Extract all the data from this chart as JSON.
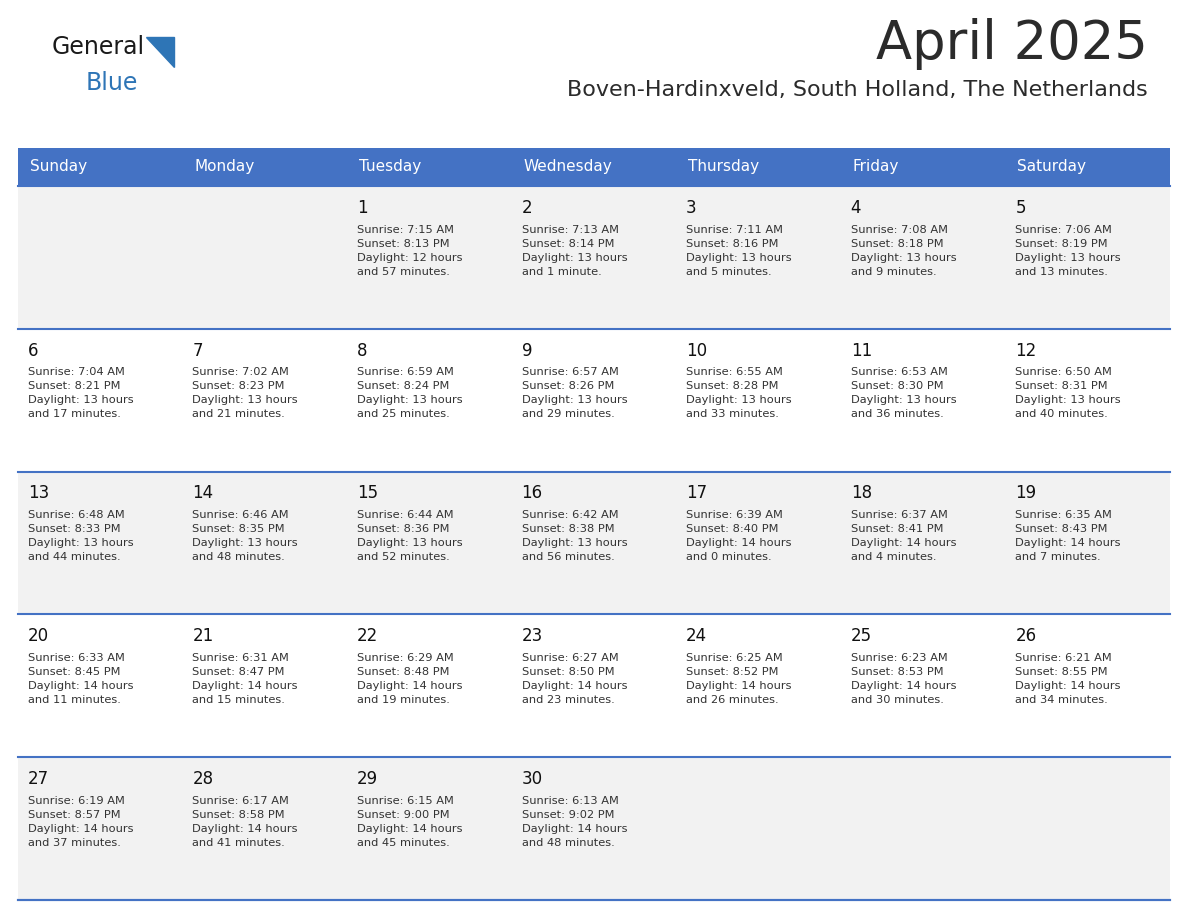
{
  "title": "April 2025",
  "subtitle": "Boven-Hardinxveld, South Holland, The Netherlands",
  "days_of_week": [
    "Sunday",
    "Monday",
    "Tuesday",
    "Wednesday",
    "Thursday",
    "Friday",
    "Saturday"
  ],
  "header_bg": "#4472C4",
  "header_text": "#FFFFFF",
  "row_bg_odd": "#F2F2F2",
  "row_bg_even": "#FFFFFF",
  "cell_text_color": "#333333",
  "day_number_color": "#111111",
  "divider_color": "#4472C4",
  "title_color": "#2B2B2B",
  "subtitle_color": "#2B2B2B",
  "logo_general_color": "#1A1A1A",
  "logo_blue_color": "#2E75B6",
  "calendar": [
    [
      {
        "day": null,
        "info": null
      },
      {
        "day": null,
        "info": null
      },
      {
        "day": 1,
        "info": "Sunrise: 7:15 AM\nSunset: 8:13 PM\nDaylight: 12 hours\nand 57 minutes."
      },
      {
        "day": 2,
        "info": "Sunrise: 7:13 AM\nSunset: 8:14 PM\nDaylight: 13 hours\nand 1 minute."
      },
      {
        "day": 3,
        "info": "Sunrise: 7:11 AM\nSunset: 8:16 PM\nDaylight: 13 hours\nand 5 minutes."
      },
      {
        "day": 4,
        "info": "Sunrise: 7:08 AM\nSunset: 8:18 PM\nDaylight: 13 hours\nand 9 minutes."
      },
      {
        "day": 5,
        "info": "Sunrise: 7:06 AM\nSunset: 8:19 PM\nDaylight: 13 hours\nand 13 minutes."
      }
    ],
    [
      {
        "day": 6,
        "info": "Sunrise: 7:04 AM\nSunset: 8:21 PM\nDaylight: 13 hours\nand 17 minutes."
      },
      {
        "day": 7,
        "info": "Sunrise: 7:02 AM\nSunset: 8:23 PM\nDaylight: 13 hours\nand 21 minutes."
      },
      {
        "day": 8,
        "info": "Sunrise: 6:59 AM\nSunset: 8:24 PM\nDaylight: 13 hours\nand 25 minutes."
      },
      {
        "day": 9,
        "info": "Sunrise: 6:57 AM\nSunset: 8:26 PM\nDaylight: 13 hours\nand 29 minutes."
      },
      {
        "day": 10,
        "info": "Sunrise: 6:55 AM\nSunset: 8:28 PM\nDaylight: 13 hours\nand 33 minutes."
      },
      {
        "day": 11,
        "info": "Sunrise: 6:53 AM\nSunset: 8:30 PM\nDaylight: 13 hours\nand 36 minutes."
      },
      {
        "day": 12,
        "info": "Sunrise: 6:50 AM\nSunset: 8:31 PM\nDaylight: 13 hours\nand 40 minutes."
      }
    ],
    [
      {
        "day": 13,
        "info": "Sunrise: 6:48 AM\nSunset: 8:33 PM\nDaylight: 13 hours\nand 44 minutes."
      },
      {
        "day": 14,
        "info": "Sunrise: 6:46 AM\nSunset: 8:35 PM\nDaylight: 13 hours\nand 48 minutes."
      },
      {
        "day": 15,
        "info": "Sunrise: 6:44 AM\nSunset: 8:36 PM\nDaylight: 13 hours\nand 52 minutes."
      },
      {
        "day": 16,
        "info": "Sunrise: 6:42 AM\nSunset: 8:38 PM\nDaylight: 13 hours\nand 56 minutes."
      },
      {
        "day": 17,
        "info": "Sunrise: 6:39 AM\nSunset: 8:40 PM\nDaylight: 14 hours\nand 0 minutes."
      },
      {
        "day": 18,
        "info": "Sunrise: 6:37 AM\nSunset: 8:41 PM\nDaylight: 14 hours\nand 4 minutes."
      },
      {
        "day": 19,
        "info": "Sunrise: 6:35 AM\nSunset: 8:43 PM\nDaylight: 14 hours\nand 7 minutes."
      }
    ],
    [
      {
        "day": 20,
        "info": "Sunrise: 6:33 AM\nSunset: 8:45 PM\nDaylight: 14 hours\nand 11 minutes."
      },
      {
        "day": 21,
        "info": "Sunrise: 6:31 AM\nSunset: 8:47 PM\nDaylight: 14 hours\nand 15 minutes."
      },
      {
        "day": 22,
        "info": "Sunrise: 6:29 AM\nSunset: 8:48 PM\nDaylight: 14 hours\nand 19 minutes."
      },
      {
        "day": 23,
        "info": "Sunrise: 6:27 AM\nSunset: 8:50 PM\nDaylight: 14 hours\nand 23 minutes."
      },
      {
        "day": 24,
        "info": "Sunrise: 6:25 AM\nSunset: 8:52 PM\nDaylight: 14 hours\nand 26 minutes."
      },
      {
        "day": 25,
        "info": "Sunrise: 6:23 AM\nSunset: 8:53 PM\nDaylight: 14 hours\nand 30 minutes."
      },
      {
        "day": 26,
        "info": "Sunrise: 6:21 AM\nSunset: 8:55 PM\nDaylight: 14 hours\nand 34 minutes."
      }
    ],
    [
      {
        "day": 27,
        "info": "Sunrise: 6:19 AM\nSunset: 8:57 PM\nDaylight: 14 hours\nand 37 minutes."
      },
      {
        "day": 28,
        "info": "Sunrise: 6:17 AM\nSunset: 8:58 PM\nDaylight: 14 hours\nand 41 minutes."
      },
      {
        "day": 29,
        "info": "Sunrise: 6:15 AM\nSunset: 9:00 PM\nDaylight: 14 hours\nand 45 minutes."
      },
      {
        "day": 30,
        "info": "Sunrise: 6:13 AM\nSunset: 9:02 PM\nDaylight: 14 hours\nand 48 minutes."
      },
      {
        "day": null,
        "info": null
      },
      {
        "day": null,
        "info": null
      },
      {
        "day": null,
        "info": null
      }
    ]
  ]
}
